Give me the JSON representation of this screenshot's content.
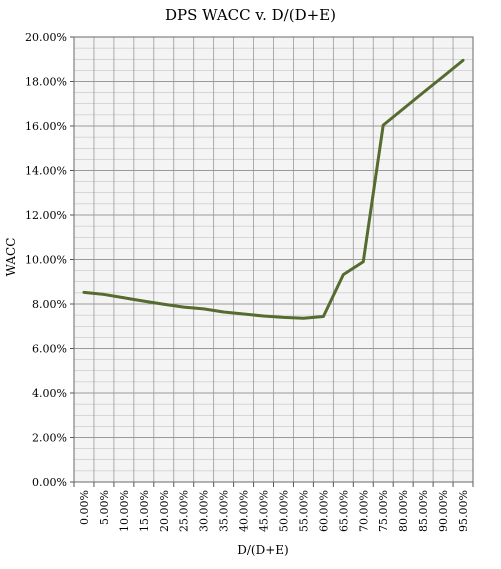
{
  "chart_data": {
    "type": "line",
    "title": "DPS WACC v. D/(D+E)",
    "xlabel": "D/(D+E)",
    "ylabel": "WACC",
    "categories": [
      "0.00%",
      "5.00%",
      "10.00%",
      "15.00%",
      "20.00%",
      "25.00%",
      "30.00%",
      "35.00%",
      "40.00%",
      "45.00%",
      "50.00%",
      "55.00%",
      "60.00%",
      "65.00%",
      "70.00%",
      "75.00%",
      "80.00%",
      "85.00%",
      "90.00%",
      "95.00%"
    ],
    "yticks": [
      "0.00%",
      "2.00%",
      "4.00%",
      "6.00%",
      "8.00%",
      "10.00%",
      "12.00%",
      "14.00%",
      "16.00%",
      "18.00%",
      "20.00%"
    ],
    "ylim": [
      0,
      0.2
    ],
    "series": [
      {
        "color": "#556b2f",
        "values": [
          0.0852,
          0.0843,
          0.0828,
          0.0813,
          0.0799,
          0.0786,
          0.0778,
          0.0764,
          0.0755,
          0.0746,
          0.074,
          0.0736,
          0.0744,
          0.0932,
          0.099,
          0.1604,
          0.1677,
          0.175,
          0.1822,
          0.1895
        ]
      }
    ],
    "grid": true,
    "legend": "none",
    "plot_background": "#f4f4f4",
    "grid_color": "#9a9a9a"
  }
}
